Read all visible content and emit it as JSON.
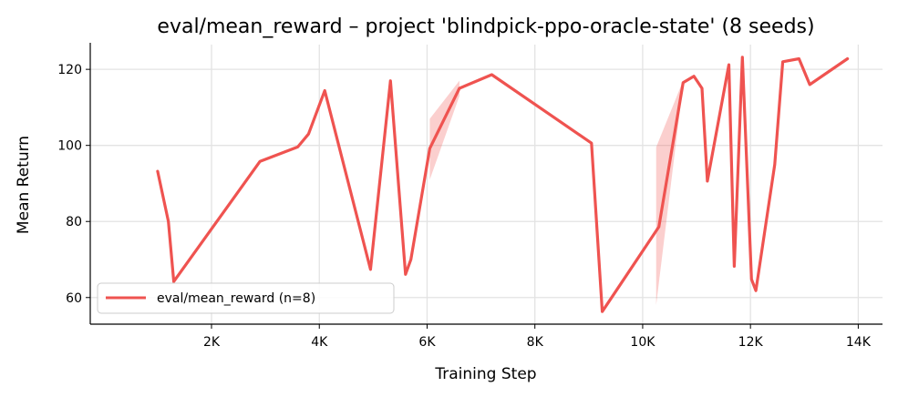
{
  "chart_data": {
    "type": "line",
    "title": "eval/mean_reward – project 'blindpick-ppo-oracle-state' (8 seeds)",
    "xlabel": "Training Step",
    "ylabel": "Mean Return",
    "xlim": [
      -250,
      14450
    ],
    "ylim": [
      53,
      126.5
    ],
    "xticks": [
      2000,
      4000,
      6000,
      8000,
      10000,
      12000,
      14000
    ],
    "xtick_labels": [
      "2K",
      "4K",
      "6K",
      "8K",
      "10K",
      "12K",
      "14K"
    ],
    "yticks": [
      60,
      80,
      100,
      120
    ],
    "ytick_labels": [
      "60",
      "80",
      "100",
      "120"
    ],
    "grid": true,
    "legend_position": "lower-left",
    "series": [
      {
        "name": "eval/mean_reward (n=8)",
        "color": "#ef5350",
        "points": [
          [
            1000,
            93.2
          ],
          [
            1200,
            80.0
          ],
          [
            1300,
            64.2
          ],
          [
            2900,
            95.8
          ],
          [
            3600,
            99.6
          ],
          [
            3800,
            103.0
          ],
          [
            4100,
            114.4
          ],
          [
            4950,
            67.4
          ],
          [
            5320,
            117.0
          ],
          [
            5600,
            66.1
          ],
          [
            5700,
            70.0
          ],
          [
            6050,
            99.2
          ],
          [
            6600,
            115.0
          ],
          [
            7200,
            118.6
          ],
          [
            9050,
            100.6
          ],
          [
            9250,
            56.3
          ],
          [
            10300,
            78.6
          ],
          [
            10750,
            116.5
          ],
          [
            10950,
            118.2
          ],
          [
            11100,
            115.0
          ],
          [
            11200,
            90.6
          ],
          [
            11600,
            121.2
          ],
          [
            11700,
            68.2
          ],
          [
            11850,
            123.2
          ],
          [
            12020,
            64.8
          ],
          [
            12100,
            61.8
          ],
          [
            12450,
            95.0
          ],
          [
            12600,
            122.0
          ],
          [
            12900,
            122.8
          ],
          [
            13100,
            116.0
          ],
          [
            13800,
            122.8
          ]
        ],
        "bands": [
          {
            "upper": [
              [
                6050,
                107.0
              ],
              [
                6600,
                117.0
              ]
            ],
            "lower": [
              [
                6050,
                91.0
              ],
              [
                6600,
                113.0
              ]
            ]
          },
          {
            "upper": [
              [
                10250,
                99.5
              ],
              [
                10750,
                117.0
              ]
            ],
            "lower": [
              [
                10250,
                58.0
              ],
              [
                10750,
                116.0
              ]
            ]
          }
        ]
      }
    ]
  }
}
